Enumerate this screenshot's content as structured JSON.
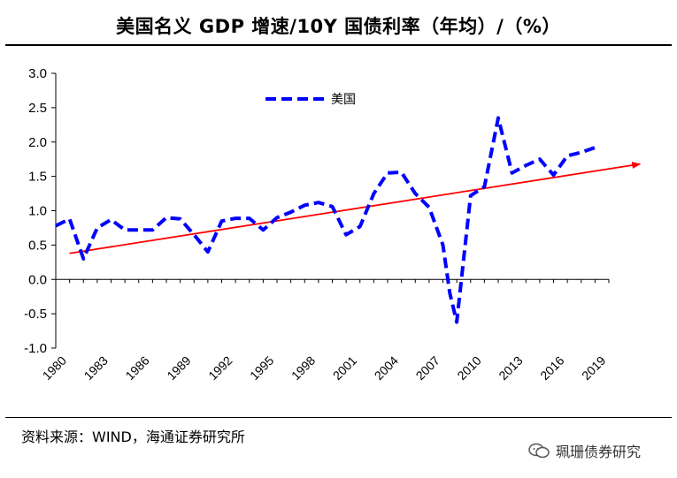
{
  "header": {
    "title": "美国名义 GDP 增速/10Y 国债利率（年均）/（%）"
  },
  "footer": {
    "source": "资料来源：WIND，海通证券研究所",
    "watermark": "珮珊债券研究"
  },
  "colors": {
    "series": "#0000ff",
    "trend": "#ff0000",
    "axis": "#000000"
  },
  "chart_data": {
    "type": "line",
    "title": "美国名义 GDP 增速/10Y 国债利率（年均）/（%）",
    "xlabel": "",
    "ylabel": "",
    "ylim": [
      -1.0,
      3.0
    ],
    "yticks": [
      "3.0",
      "2.5",
      "2.0",
      "1.5",
      "1.0",
      "0.5",
      "0.0",
      "-0.5",
      "-1.0"
    ],
    "yticks_values": [
      3.0,
      2.5,
      2.0,
      1.5,
      1.0,
      0.5,
      0.0,
      -0.5,
      -1.0
    ],
    "xticks": [
      "1980",
      "1983",
      "1986",
      "1989",
      "1992",
      "1995",
      "1998",
      "2001",
      "2004",
      "2007",
      "2010",
      "2013",
      "2016",
      "2019"
    ],
    "legend": {
      "position": "top-center",
      "entries": [
        "美国"
      ]
    },
    "series": [
      {
        "name": "美国",
        "style": "dashed",
        "x": [
          1980,
          1981,
          1982,
          1983,
          1984,
          1985,
          1986,
          1987,
          1988,
          1989,
          1990,
          1991,
          1992,
          1993,
          1994,
          1995,
          1996,
          1997,
          1998,
          1999,
          2000,
          2001,
          2002,
          2003,
          2004,
          2005,
          2006,
          2007,
          2008,
          2008.5,
          2009,
          2010,
          2011,
          2012,
          2013,
          2014,
          2015,
          2016,
          2017,
          2018,
          2019
        ],
        "values": [
          0.78,
          0.88,
          0.3,
          0.75,
          0.87,
          0.72,
          0.72,
          0.72,
          0.9,
          0.88,
          0.65,
          0.4,
          0.85,
          0.89,
          0.89,
          0.72,
          0.9,
          0.98,
          1.08,
          1.12,
          1.06,
          0.65,
          0.77,
          1.25,
          1.55,
          1.56,
          1.25,
          1.05,
          0.5,
          -0.2,
          -0.62,
          1.22,
          1.35,
          2.35,
          1.55,
          1.66,
          1.75,
          1.52,
          1.8,
          1.85,
          1.92
        ]
      }
    ],
    "trendline": {
      "name": "trend",
      "x": [
        1981,
        2022
      ],
      "values": [
        0.38,
        1.68
      ],
      "arrow": true
    }
  }
}
